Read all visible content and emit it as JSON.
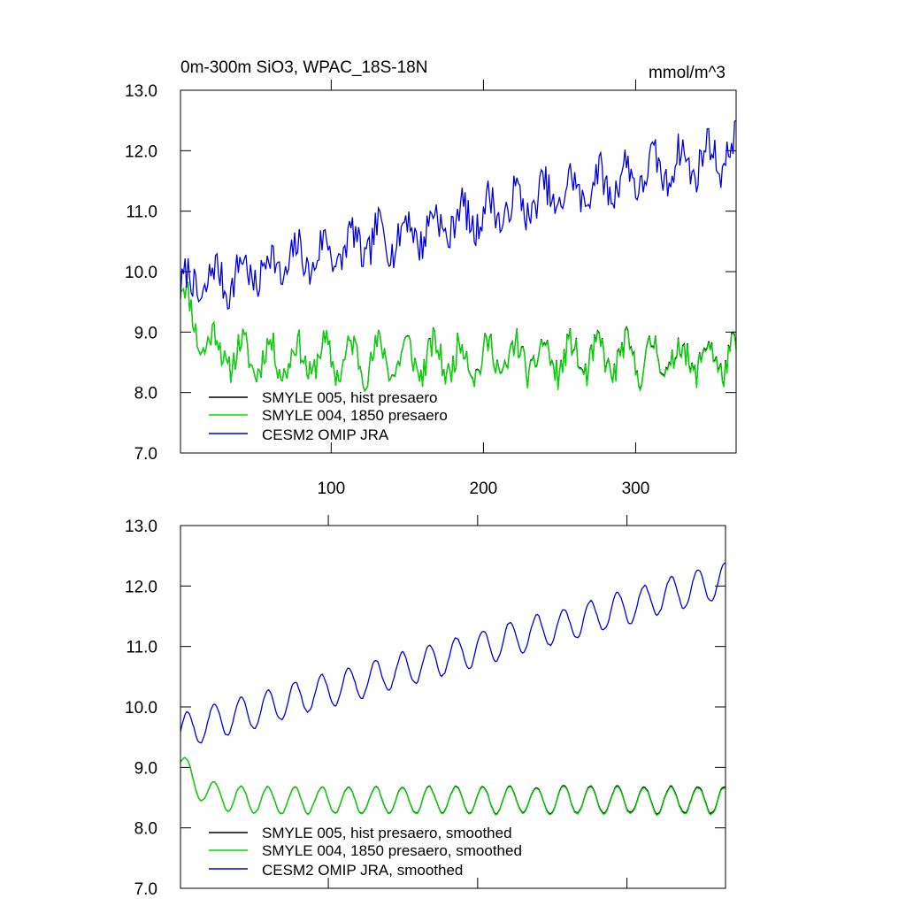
{
  "chart_data": [
    {
      "id": "top",
      "type": "line",
      "title": "0m-300m SiO3, WPAC_18S-18N",
      "units": "mmol/m^3",
      "xlim": [
        1,
        366
      ],
      "ylim": [
        7.0,
        13.0
      ],
      "xticks": [
        100,
        200,
        300
      ],
      "xtick_labels": [
        "100",
        "200",
        "300"
      ],
      "yticks": [
        7.0,
        8.0,
        9.0,
        10.0,
        11.0,
        12.0,
        13.0
      ],
      "ytick_labels": [
        "7.0",
        "8.0",
        "9.0",
        "10.0",
        "11.0",
        "12.0",
        "13.0"
      ],
      "legend_position": "bottom-left",
      "series": [
        {
          "name": "SMYLE 005, hist presaero",
          "color": "#000000",
          "kind": "model",
          "start": 9.8,
          "base": 8.55,
          "amp": 0.28,
          "noise": 0.25,
          "offset": 0.02,
          "seed": 11
        },
        {
          "name": "SMYLE 004, 1850 presaero",
          "color": "#00dd00",
          "kind": "model",
          "start": 9.8,
          "base": 8.55,
          "amp": 0.28,
          "noise": 0.25,
          "offset": 0.0,
          "seed": 11
        },
        {
          "name": "CESM2 OMIP JRA",
          "color": "#0000dd",
          "kind": "omip",
          "start": 9.7,
          "end": 12.0,
          "amp": 0.28,
          "noise": 0.3,
          "seed": 7
        }
      ]
    },
    {
      "id": "bottom",
      "type": "line",
      "title": "",
      "xlim": [
        1,
        366
      ],
      "ylim": [
        7.0,
        13.0
      ],
      "xticks": [
        100,
        200,
        300
      ],
      "yticks": [
        7.0,
        8.0,
        9.0,
        10.0,
        11.0,
        12.0,
        13.0
      ],
      "ytick_labels": [
        "7.0",
        "8.0",
        "9.0",
        "10.0",
        "11.0",
        "12.0",
        "13.0"
      ],
      "legend_position": "bottom-left",
      "series": [
        {
          "name": "SMYLE 005, hist presaero, smoothed",
          "color": "#000000",
          "kind": "model",
          "start": 9.1,
          "base": 8.45,
          "amp": 0.22,
          "noise": 0.04,
          "offset": 0.02,
          "seed": 3
        },
        {
          "name": "SMYLE 004, 1850 presaero, smoothed",
          "color": "#00dd00",
          "kind": "model",
          "start": 9.1,
          "base": 8.45,
          "amp": 0.22,
          "noise": 0.04,
          "offset": 0.0,
          "seed": 3
        },
        {
          "name": "CESM2 OMIP JRA, smoothed",
          "color": "#0000dd",
          "kind": "omip",
          "start": 9.6,
          "end": 12.1,
          "amp": 0.28,
          "noise": 0.05,
          "seed": 5
        }
      ]
    }
  ]
}
